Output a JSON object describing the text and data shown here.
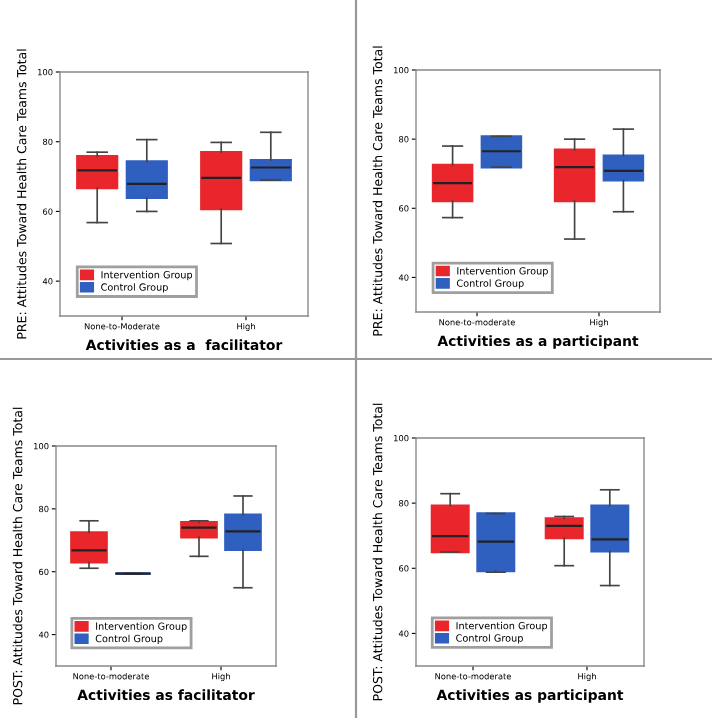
{
  "chart_data": [
    {
      "type": "box",
      "categories": [
        "None-to-Moderate",
        "High"
      ],
      "xlabel": "Activities as a  facilitator",
      "ylabel": "PRE: Attitudes Toward Health Care Teams Total",
      "ylim": [
        30,
        100
      ],
      "yticks": [
        40,
        60,
        80,
        100
      ],
      "legend": "bottom left",
      "grid": false,
      "series": [
        {
          "name": "Intervention Group",
          "color": "#e8262b",
          "boxes": [
            {
              "low": 56.8,
              "q1": 66.7,
              "median": 71.8,
              "q3": 75.8,
              "high": 77
            },
            {
              "low": 50.8,
              "q1": 60.7,
              "median": 69.6,
              "q3": 77,
              "high": 79.8
            }
          ]
        },
        {
          "name": "Control Group",
          "color": "#2f5fbf",
          "boxes": [
            {
              "low": 60,
              "q1": 63.9,
              "median": 67.9,
              "q3": 74.3,
              "high": 80.6
            },
            {
              "low": 69,
              "q1": 69,
              "median": 72.6,
              "q3": 74.7,
              "high": 82.7
            }
          ]
        }
      ]
    },
    {
      "type": "box",
      "categories": [
        "None-to-moderate",
        "High"
      ],
      "xlabel": "Activities as a participant",
      "ylabel": "PRE: Attitudes Toward Health Care Teams Total",
      "ylim": [
        30,
        100
      ],
      "yticks": [
        40,
        60,
        80,
        100
      ],
      "legend": "bottom left",
      "grid": false,
      "series": [
        {
          "name": "Intervention Group",
          "color": "#e8262b",
          "boxes": [
            {
              "low": 57.3,
              "q1": 62.1,
              "median": 67.3,
              "q3": 72.5,
              "high": 78
            },
            {
              "low": 51.1,
              "q1": 62.1,
              "median": 71.9,
              "q3": 76.9,
              "high": 80
            }
          ]
        },
        {
          "name": "Control Group",
          "color": "#2f5fbf",
          "boxes": [
            {
              "low": 71.9,
              "q1": 71.9,
              "median": 76.5,
              "q3": 80.8,
              "high": 80.8
            },
            {
              "low": 59,
              "q1": 68.1,
              "median": 70.8,
              "q3": 75.2,
              "high": 82.9
            }
          ]
        }
      ]
    },
    {
      "type": "box",
      "categories": [
        "None-to-moderate",
        "High"
      ],
      "xlabel": "Activities as facilitator",
      "ylabel": "POST: Attitudes Toward Health Care Teams Total",
      "ylim": [
        30,
        100
      ],
      "yticks": [
        40,
        60,
        80,
        100
      ],
      "legend": "bottom left",
      "grid": false,
      "series": [
        {
          "name": "Intervention Group",
          "color": "#e8262b",
          "boxes": [
            {
              "low": 61.1,
              "q1": 63,
              "median": 66.8,
              "q3": 72.5,
              "high": 76.2
            },
            {
              "low": 64.9,
              "q1": 71,
              "median": 74,
              "q3": 75.7,
              "high": 76.2
            }
          ]
        },
        {
          "name": "Control Group",
          "color": "#2f5fbf",
          "boxes": [
            {
              "low": 59.4,
              "q1": 59.4,
              "median": 59.4,
              "q3": 59.4,
              "high": 59.4
            },
            {
              "low": 54.9,
              "q1": 67,
              "median": 72.8,
              "q3": 78.1,
              "high": 84.1
            }
          ]
        }
      ]
    },
    {
      "type": "box",
      "categories": [
        "None-to-moderate",
        "High"
      ],
      "xlabel": "Activities as participant",
      "ylabel": "POST: Attitudes Toward Health Care Teams Total",
      "ylim": [
        30,
        100
      ],
      "yticks": [
        40,
        60,
        80,
        100
      ],
      "legend": "bottom left",
      "grid": false,
      "series": [
        {
          "name": "Intervention Group",
          "color": "#e8262b",
          "boxes": [
            {
              "low": 65,
              "q1": 65,
              "median": 69.9,
              "q3": 79.2,
              "high": 82.9
            },
            {
              "low": 60.8,
              "q1": 69.3,
              "median": 73,
              "q3": 75.3,
              "high": 75.9
            }
          ]
        },
        {
          "name": "Control Group",
          "color": "#2f5fbf",
          "boxes": [
            {
              "low": 58.8,
              "q1": 59.2,
              "median": 68.2,
              "q3": 76.8,
              "high": 76.8
            },
            {
              "low": 54.7,
              "q1": 65.2,
              "median": 68.9,
              "q3": 79.2,
              "high": 84.1
            }
          ]
        }
      ]
    }
  ]
}
